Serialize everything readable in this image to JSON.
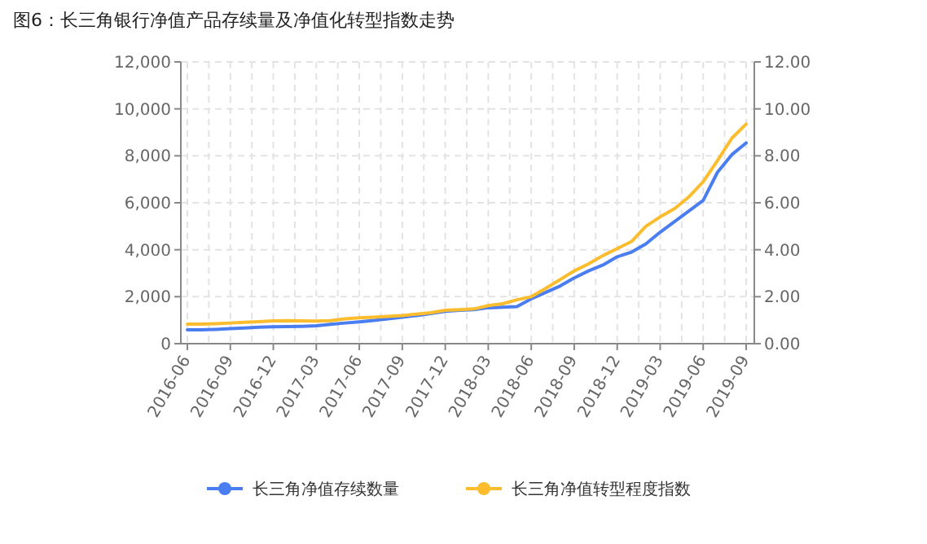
{
  "chart_data": {
    "type": "line",
    "title": "图6：长三角银行净值产品存续量及净值化转型指数走势",
    "categories": [
      "2016-06",
      null,
      null,
      "2016-09",
      null,
      null,
      "2016-12",
      null,
      null,
      "2017-03",
      null,
      null,
      "2017-06",
      null,
      null,
      "2017-09",
      null,
      null,
      "2017-12",
      null,
      null,
      "2018-03",
      null,
      null,
      "2018-06",
      null,
      null,
      "2018-09",
      null,
      null,
      "2018-12",
      null,
      null,
      "2019-03",
      null,
      null,
      "2019-06",
      null,
      null,
      "2019-09"
    ],
    "series": [
      {
        "name": "长三角净值存续数量",
        "color": "#4a7ef0",
        "values": [
          590,
          590,
          610,
          640,
          670,
          700,
          720,
          730,
          740,
          760,
          820,
          880,
          930,
          990,
          1060,
          1130,
          1200,
          1280,
          1380,
          1420,
          1450,
          1530,
          1550,
          1580,
          1910,
          2180,
          2450,
          2800,
          3100,
          3350,
          3700,
          3900,
          4250,
          4750,
          5200,
          5650,
          6100,
          7300,
          8050,
          8550
        ]
      },
      {
        "name": "长三角净值转型程度指数",
        "color": "#fbbd2e",
        "axis": "y2",
        "values": [
          0.83,
          0.83,
          0.85,
          0.88,
          0.91,
          0.94,
          0.97,
          0.98,
          0.97,
          0.96,
          0.98,
          1.06,
          1.1,
          1.13,
          1.16,
          1.2,
          1.26,
          1.32,
          1.42,
          1.45,
          1.48,
          1.62,
          1.7,
          1.87,
          2.0,
          2.35,
          2.72,
          3.1,
          3.4,
          3.75,
          4.05,
          4.35,
          5.0,
          5.4,
          5.75,
          6.25,
          6.9,
          7.8,
          8.75,
          9.35
        ]
      }
    ],
    "ylim": [
      0,
      12000
    ],
    "yticks": [
      {
        "value": 0,
        "label": "0"
      },
      {
        "value": 2000,
        "label": "2,000"
      },
      {
        "value": 4000,
        "label": "4,000"
      },
      {
        "value": 6000,
        "label": "6,000"
      },
      {
        "value": 8000,
        "label": "8,000"
      },
      {
        "value": 10000,
        "label": "10,000"
      },
      {
        "value": 12000,
        "label": "12,000"
      }
    ],
    "y2lim": [
      0,
      12
    ],
    "y2ticks": [
      {
        "value": 0,
        "label": "0.00"
      },
      {
        "value": 2,
        "label": "2.00"
      },
      {
        "value": 4,
        "label": "4.00"
      },
      {
        "value": 6,
        "label": "6.00"
      },
      {
        "value": 8,
        "label": "8.00"
      },
      {
        "value": 10,
        "label": "10.00"
      },
      {
        "value": 12,
        "label": "12.00"
      }
    ],
    "grid": true,
    "legend": "bottom",
    "marker": "none",
    "line_style": "solid"
  }
}
